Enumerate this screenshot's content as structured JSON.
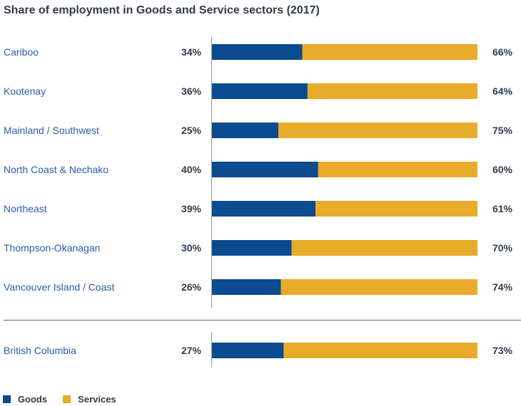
{
  "colors": {
    "goods": "#0b4b8f",
    "services": "#e8ab2a",
    "label": "#2a5caa",
    "value": "#2f3b4d",
    "axis": "#999999"
  },
  "chart_data": {
    "type": "bar",
    "orientation": "horizontal",
    "stacked": true,
    "title": "Share of employment in Goods and Service sectors (2017)",
    "categories": [
      "Cariboo",
      "Kootenay",
      "Mainland / Southwest",
      "North Coast & Nechako",
      "Northeast",
      "Thompson-Okanagan",
      "Vancouver Island / Coast",
      "British Columbia"
    ],
    "series": [
      {
        "name": "Goods",
        "values": [
          34,
          36,
          25,
          40,
          39,
          30,
          26,
          27
        ],
        "labels": [
          "34%",
          "36%",
          "25%",
          "40%",
          "39%",
          "30%",
          "26%",
          "27%"
        ]
      },
      {
        "name": "Services",
        "values": [
          66,
          64,
          75,
          60,
          61,
          70,
          74,
          73
        ],
        "labels": [
          "66%",
          "64%",
          "75%",
          "60%",
          "61%",
          "70%",
          "74%",
          "73%"
        ]
      }
    ],
    "xlim": [
      0,
      100
    ],
    "unit": "%",
    "grid": false,
    "legend": "bottom-left"
  }
}
